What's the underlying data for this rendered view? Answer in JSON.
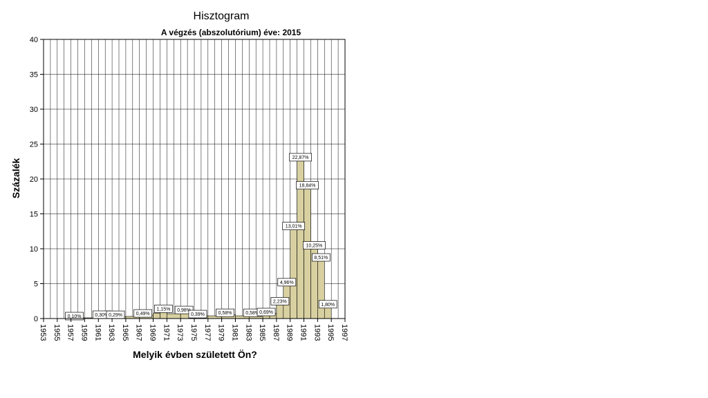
{
  "chart_data": {
    "type": "bar",
    "title": "Hisztogram",
    "subtitle": "A végzés (abszolutórium) éve: 2015",
    "xlabel": "Melyik évben született Ön?",
    "ylabel": "Százalék",
    "xlim": [
      1953,
      1997
    ],
    "ylim": [
      0,
      40
    ],
    "bin_width": 2,
    "x_ticks": [
      "1953",
      "1955",
      "1957",
      "1959",
      "1961",
      "1963",
      "1965",
      "1967",
      "1969",
      "1971",
      "1973",
      "1975",
      "1977",
      "1979",
      "1981",
      "1983",
      "1985",
      "1987",
      "1989",
      "1991",
      "1993",
      "1995",
      "1997"
    ],
    "y_ticks": [
      "0",
      "5",
      "10",
      "15",
      "20",
      "25",
      "30",
      "35",
      "40"
    ],
    "bars": [
      {
        "start": 1957,
        "value": 0.1,
        "label": "0,10%"
      },
      {
        "start": 1959,
        "value": 0.1
      },
      {
        "start": 1961,
        "value": 0.3,
        "label": "0,30%"
      },
      {
        "start": 1963,
        "value": 0.29,
        "label": "0,29%"
      },
      {
        "start": 1965,
        "value": 0.3
      },
      {
        "start": 1967,
        "value": 0.49,
        "label": "0,49%"
      },
      {
        "start": 1969,
        "value": 0.78
      },
      {
        "start": 1970,
        "value": 1.15,
        "label": "1,15%"
      },
      {
        "start": 1971,
        "value": 0.69
      },
      {
        "start": 1973,
        "value": 0.98,
        "label": "0,98%"
      },
      {
        "start": 1975,
        "value": 0.39,
        "label": "0,39%"
      },
      {
        "start": 1977,
        "value": 0.39
      },
      {
        "start": 1979,
        "value": 0.58,
        "label": "0,58%"
      },
      {
        "start": 1981,
        "value": 0.39
      },
      {
        "start": 1983,
        "value": 0.58,
        "label": "0,58%"
      },
      {
        "start": 1985,
        "value": 0.69,
        "label": "0,69%"
      },
      {
        "start": 1986,
        "value": 0.75
      },
      {
        "start": 1987,
        "value": 2.23,
        "label": "2,23%"
      },
      {
        "start": 1988,
        "value": 4.96,
        "label": "4,96%"
      },
      {
        "start": 1989,
        "value": 13.01,
        "label": "13,01%"
      },
      {
        "start": 1990,
        "value": 22.87,
        "label": "22,87%"
      },
      {
        "start": 1991,
        "value": 18.84,
        "label": "18,84%"
      },
      {
        "start": 1992,
        "value": 10.25,
        "label": "10,25%"
      },
      {
        "start": 1993,
        "value": 8.51,
        "label": "8,51%"
      },
      {
        "start": 1994,
        "value": 1.8,
        "label": "1,80%"
      }
    ],
    "grid": true,
    "colors": {
      "bar_fill": "#d8d0a0",
      "bar_stroke": "#000000",
      "grid": "#000000",
      "label_bg": "#ffffff"
    }
  }
}
